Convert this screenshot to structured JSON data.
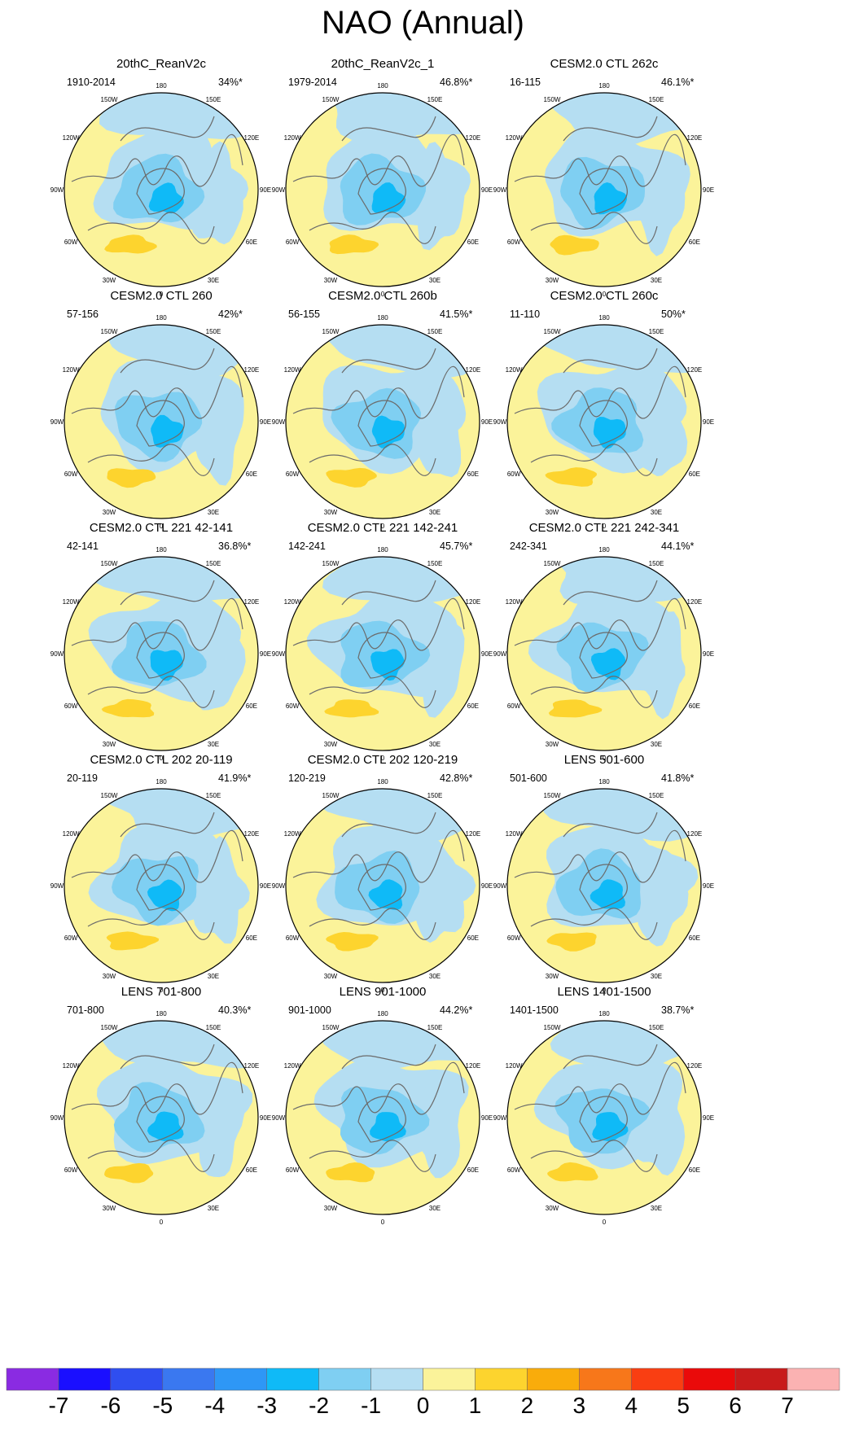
{
  "title": "NAO (Annual)",
  "chart_data": {
    "type": "heatmap",
    "projection": "north polar stereographic",
    "longitude_labels": [
      "180",
      "150E",
      "120E",
      "90E",
      "60E",
      "30E",
      "0",
      "30W",
      "60W",
      "90W",
      "120W",
      "150W"
    ],
    "panels": [
      {
        "title": "20thC_ReanV2c",
        "years": "1910-2014",
        "percent": "34%*"
      },
      {
        "title": "20thC_ReanV2c_1",
        "years": "1979-2014",
        "percent": "46.8%*"
      },
      {
        "title": "CESM2.0 CTL 262c",
        "years": "16-115",
        "percent": "46.1%*"
      },
      {
        "title": "CESM2.0 CTL 260",
        "years": "57-156",
        "percent": "42%*"
      },
      {
        "title": "CESM2.0 CTL 260b",
        "years": "56-155",
        "percent": "41.5%*"
      },
      {
        "title": "CESM2.0 CTL 260c",
        "years": "11-110",
        "percent": "50%*"
      },
      {
        "title": "CESM2.0 CTL 221 42-141",
        "years": "42-141",
        "percent": "36.8%*"
      },
      {
        "title": "CESM2.0 CTL 221 142-241",
        "years": "142-241",
        "percent": "45.7%*"
      },
      {
        "title": "CESM2.0 CTL 221 242-341",
        "years": "242-341",
        "percent": "44.1%*"
      },
      {
        "title": "CESM2.0 CTL 202 20-119",
        "years": "20-119",
        "percent": "41.9%*"
      },
      {
        "title": "CESM2.0 CTL 202 120-219",
        "years": "120-219",
        "percent": "42.8%*"
      },
      {
        "title": "LENS 501-600",
        "years": "501-600",
        "percent": "41.8%*"
      },
      {
        "title": "LENS 701-800",
        "years": "701-800",
        "percent": "40.3%*"
      },
      {
        "title": "LENS 901-1000",
        "years": "901-1000",
        "percent": "44.2%*"
      },
      {
        "title": "LENS 1401-1500",
        "years": "1401-1500",
        "percent": "38.7%*"
      }
    ],
    "colorbar": {
      "labels": [
        "-7",
        "-6",
        "-5",
        "-4",
        "-3",
        "-2",
        "-1",
        "0",
        "1",
        "2",
        "3",
        "4",
        "5",
        "6",
        "7"
      ],
      "colors": [
        "#8a2be2",
        "#1a0fff",
        "#2f4ef0",
        "#3a78f0",
        "#2e97f6",
        "#0fbaf7",
        "#7fcff2",
        "#b5def2",
        "#fbf39a",
        "#fdd42e",
        "#f9ac0b",
        "#f7771a",
        "#f93e12",
        "#ea0a0a",
        "#c81b1b",
        "#fbb2b2"
      ]
    }
  }
}
